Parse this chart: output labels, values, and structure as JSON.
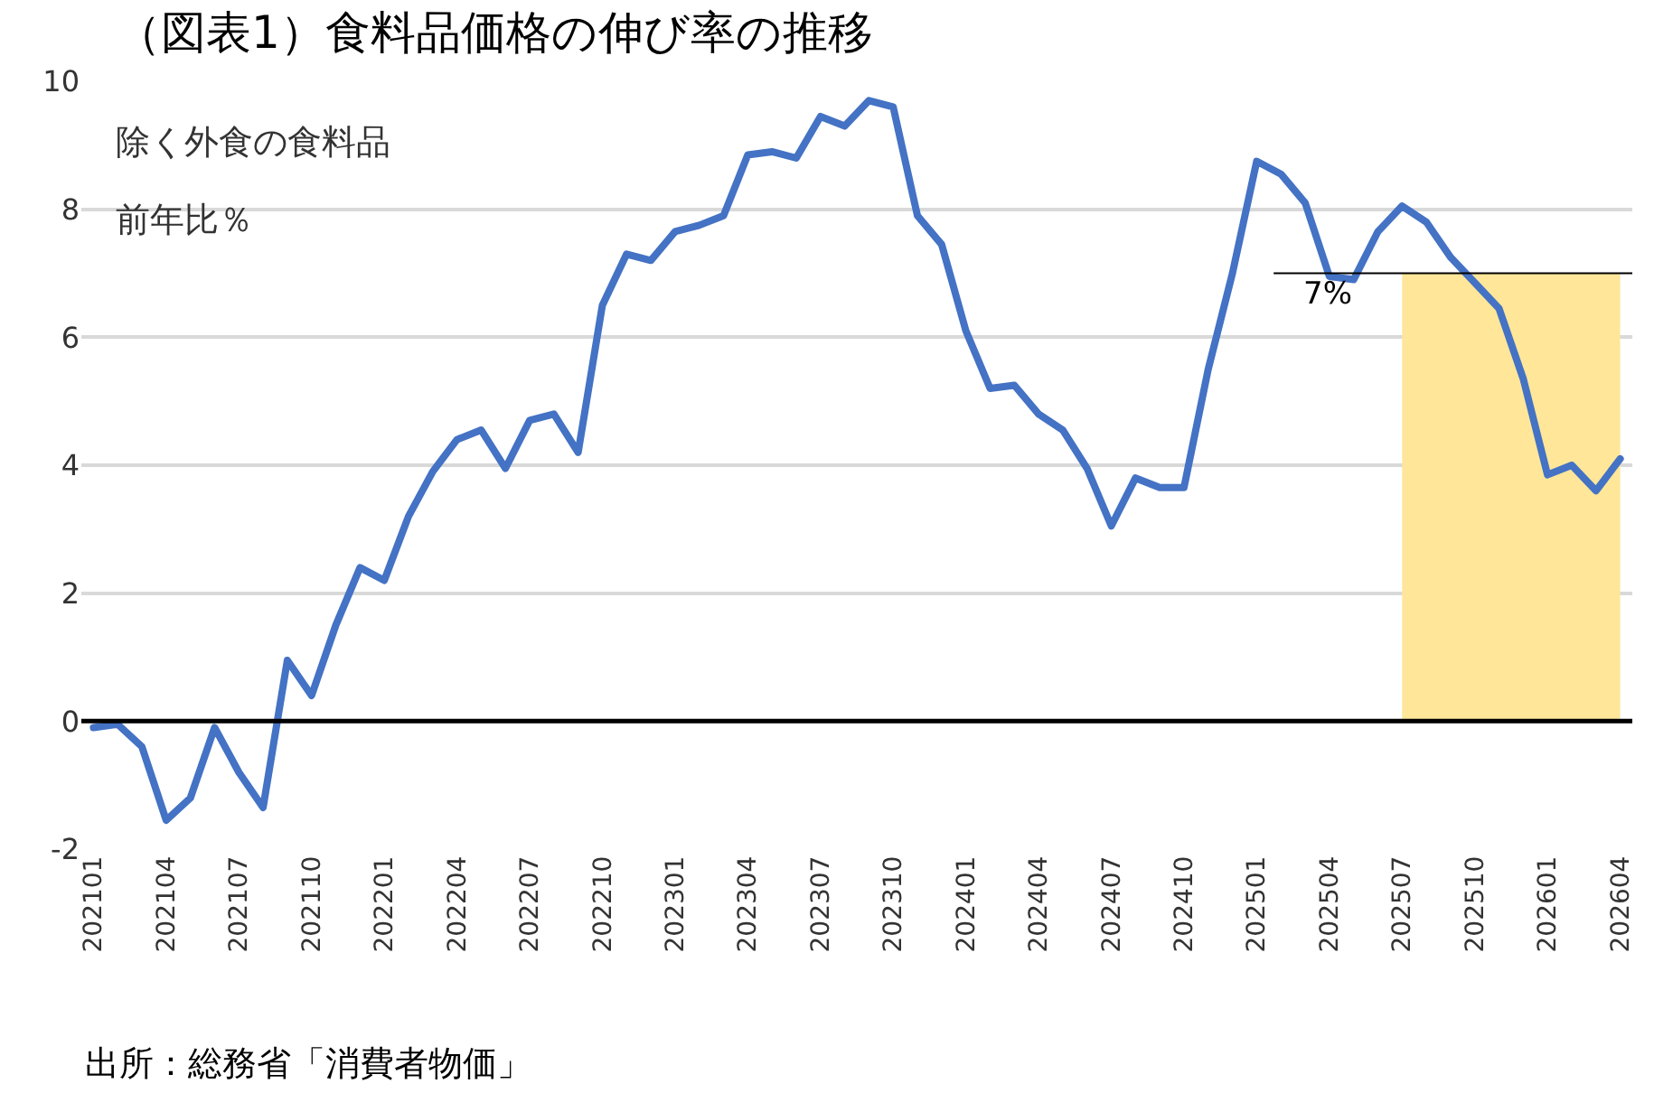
{
  "chart_data": {
    "type": "line",
    "title": "（図表1）食料品価格の伸び率の推移",
    "annotations": [
      "除く外食の食料品",
      "前年比％",
      "出所：総務省「消費者物価」"
    ],
    "categories": [
      "202101",
      null,
      null,
      "202104",
      null,
      null,
      "202107",
      null,
      null,
      "202110",
      null,
      null,
      "202201",
      null,
      null,
      "202204",
      null,
      null,
      "202207",
      null,
      null,
      "202210",
      null,
      null,
      "202301",
      null,
      null,
      "202304",
      null,
      null,
      "202307",
      null,
      null,
      "202310",
      null,
      null,
      "202401",
      null,
      null,
      "202404",
      null,
      null,
      "202407",
      null,
      null,
      "202410",
      null,
      null,
      "202501",
      null,
      null,
      "202504",
      null,
      null,
      "202507",
      null,
      null,
      "202510",
      null,
      null,
      "202601",
      null,
      null,
      "202604"
    ],
    "series": [
      {
        "type": "area",
        "color": "#ffe699",
        "values": [
          null,
          null,
          null,
          null,
          null,
          null,
          null,
          null,
          null,
          null,
          null,
          null,
          null,
          null,
          null,
          null,
          null,
          null,
          null,
          null,
          null,
          null,
          null,
          null,
          null,
          null,
          null,
          null,
          null,
          null,
          null,
          null,
          null,
          null,
          null,
          null,
          null,
          null,
          null,
          null,
          null,
          null,
          null,
          null,
          null,
          null,
          null,
          null,
          null,
          null,
          null,
          null,
          null,
          null,
          7,
          7,
          7,
          7,
          7,
          7,
          7,
          7,
          7,
          7
        ]
      },
      {
        "color": "#4472c4",
        "values": [
          -0.1,
          -0.05,
          -0.4,
          -1.55,
          -1.2,
          -0.1,
          -0.8,
          -1.35,
          0.95,
          0.4,
          1.5,
          2.4,
          2.2,
          3.2,
          3.9,
          4.4,
          4.55,
          3.95,
          4.7,
          4.8,
          4.2,
          6.5,
          7.3,
          7.2,
          7.65,
          7.75,
          7.9,
          8.85,
          8.9,
          8.8,
          9.45,
          9.3,
          9.7,
          9.6,
          7.9,
          7.45,
          6.1,
          5.2,
          5.25,
          4.8,
          4.55,
          3.95,
          3.05,
          3.8,
          3.65,
          3.65,
          5.5,
          7.0,
          8.75,
          8.55,
          8.1,
          6.95,
          6.9,
          7.65,
          8.05,
          7.8,
          7.25,
          6.85,
          6.45,
          5.35,
          3.85,
          4.0,
          3.6,
          4.1
        ]
      }
    ],
    "ref_lines": [
      {
        "axis": "y",
        "value": 7,
        "label": "7%",
        "color": "#000000"
      },
      {
        "axis": "y",
        "value": 0,
        "color": "#000000"
      }
    ],
    "ylim": [
      -2,
      10
    ],
    "yticks": [
      -2,
      0,
      2,
      4,
      6,
      8,
      10
    ],
    "grid": "y",
    "legend": false,
    "line_style": "solid",
    "marker": "none"
  }
}
